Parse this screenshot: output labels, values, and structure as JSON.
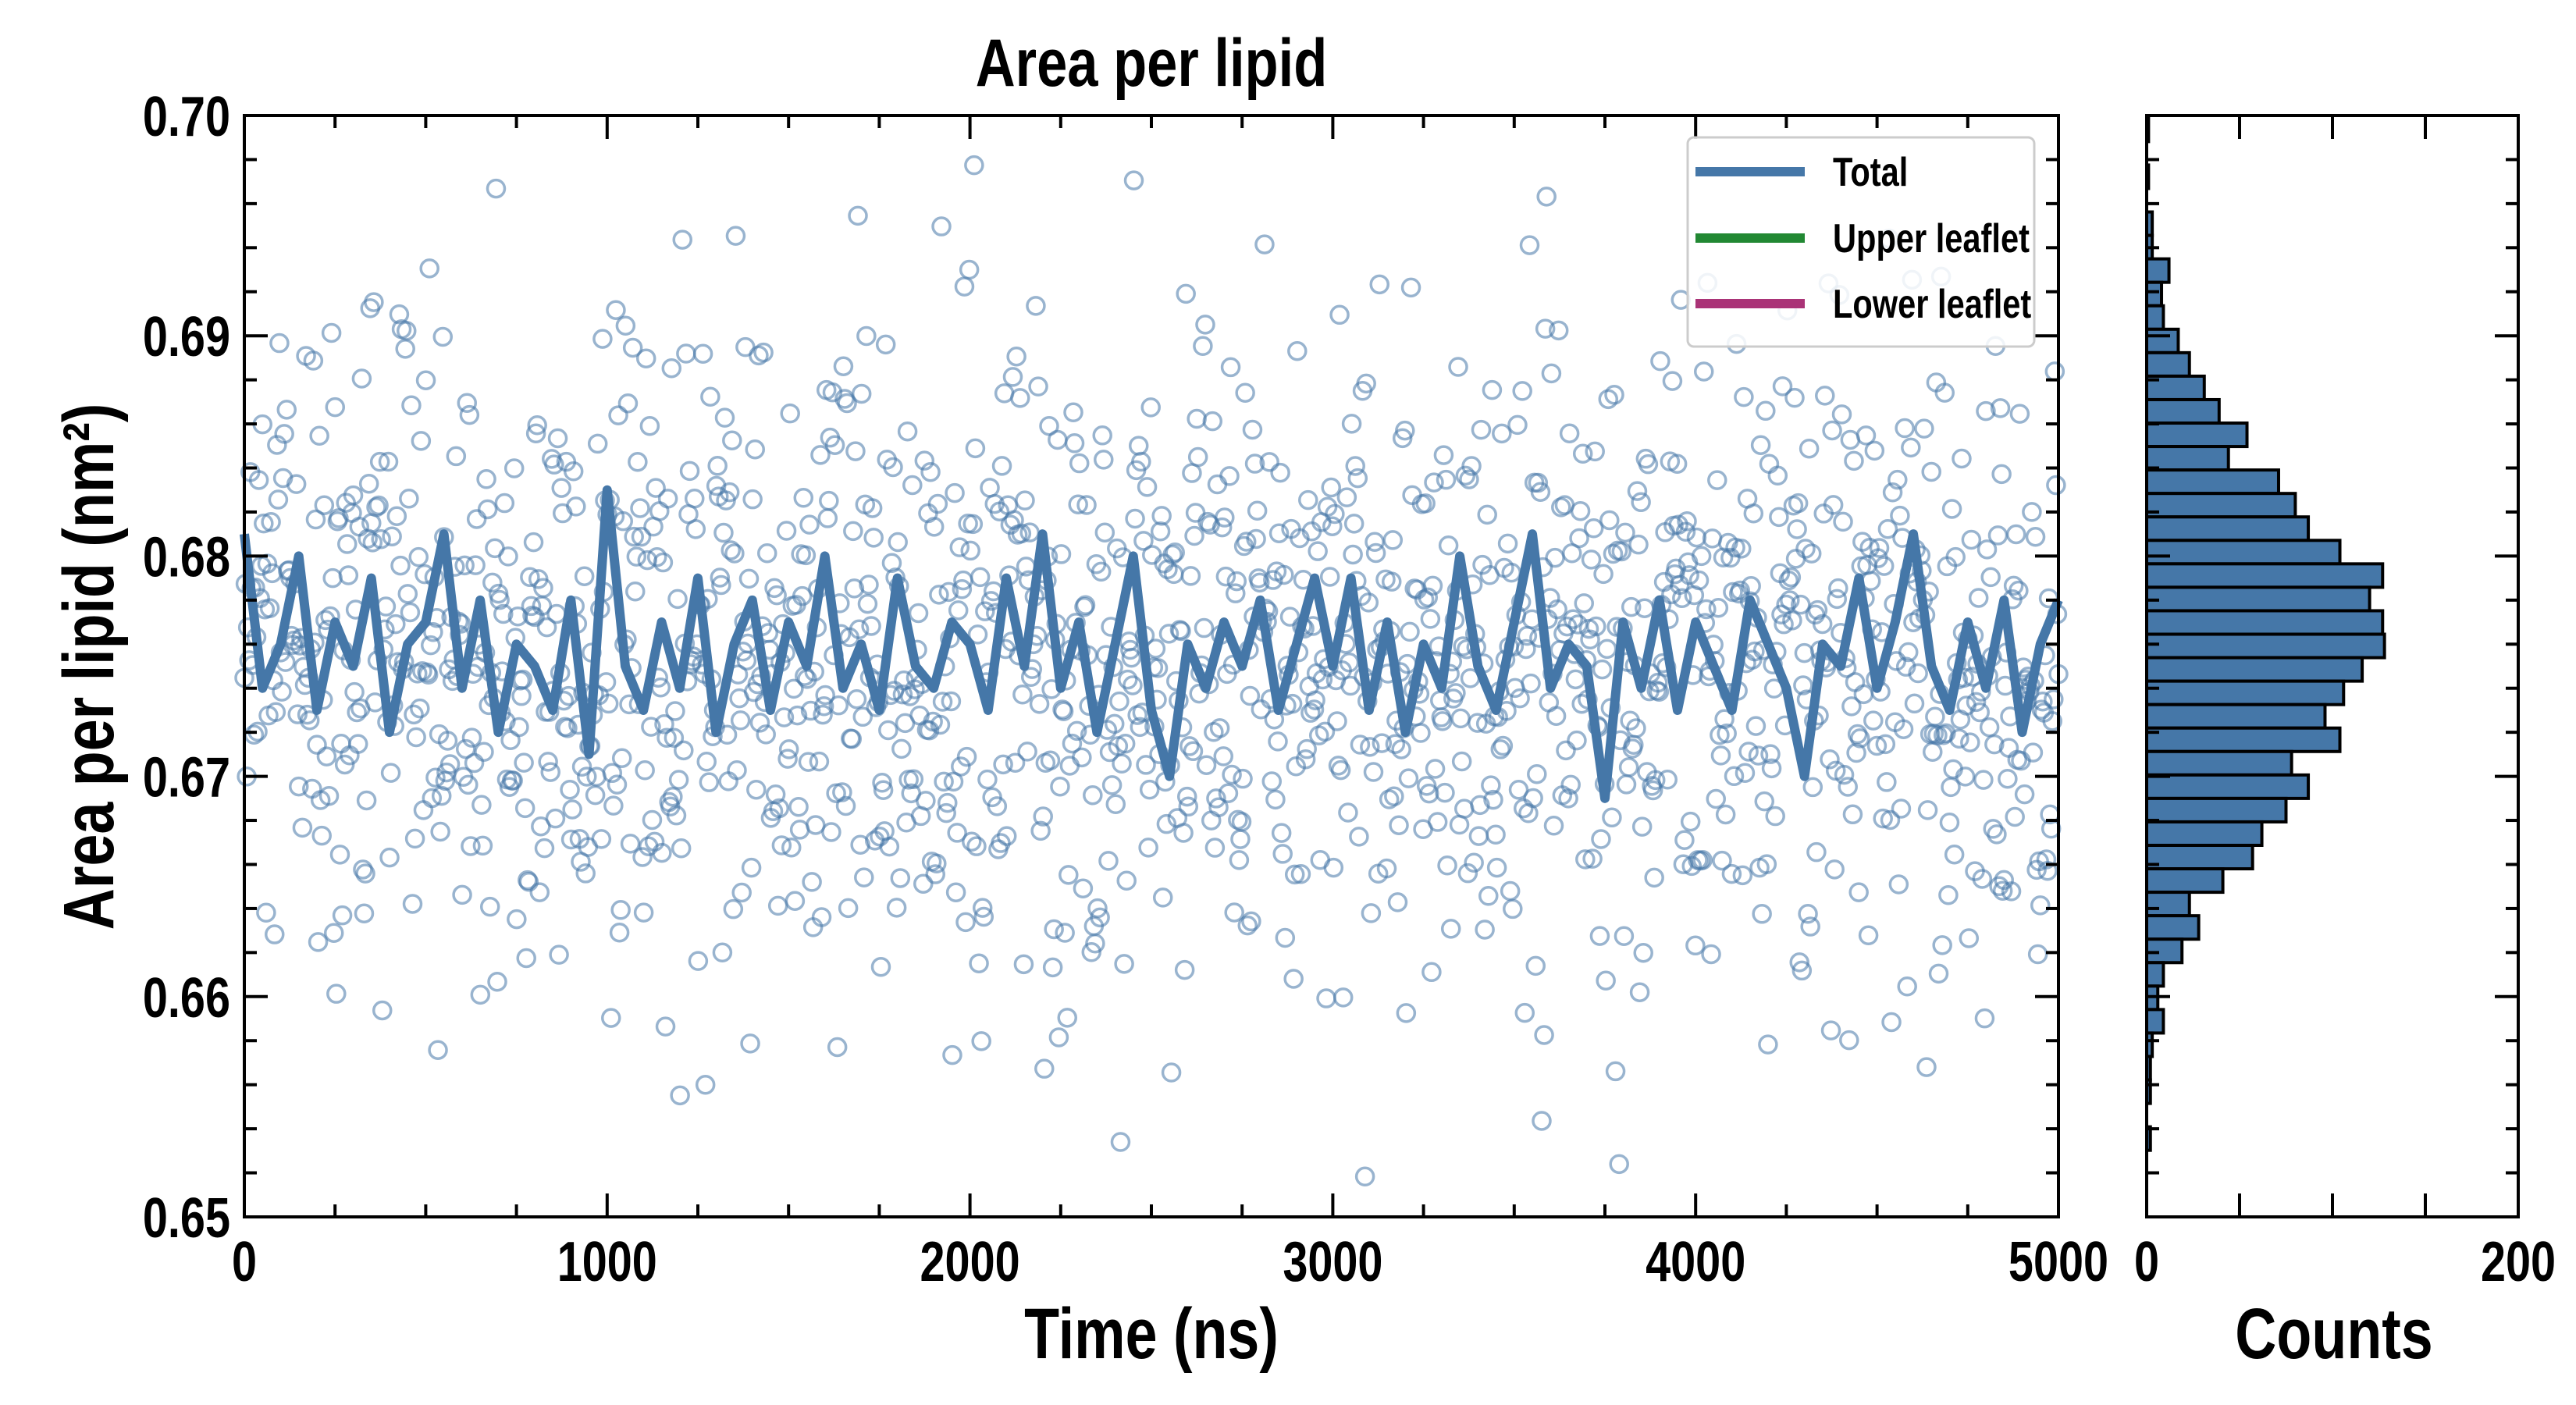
{
  "chart_data": [
    {
      "type": "scatter+line",
      "title": "Area per lipid",
      "xlabel": "Time (ns)",
      "ylabel": "Area per lipid (nm²)",
      "xlim": [
        0,
        5000
      ],
      "ylim": [
        0.65,
        0.7
      ],
      "xticks": [
        "0",
        "1000",
        "2000",
        "3000",
        "4000",
        "5000"
      ],
      "xtick_values": [
        0,
        1000,
        2000,
        3000,
        4000,
        5000
      ],
      "yticks": [
        "0.65",
        "0.66",
        "0.67",
        "0.68",
        "0.69",
        "0.70"
      ],
      "ytick_values": [
        0.65,
        0.66,
        0.67,
        0.68,
        0.69,
        0.7
      ],
      "legend_position": "top-right",
      "legend": [
        {
          "label": "Total",
          "color": "#4577a8"
        },
        {
          "label": "Upper leaflet",
          "color": "#228833"
        },
        {
          "label": "Lower leaflet",
          "color": "#aa3377"
        }
      ],
      "scatter": {
        "name": "Total (raw frames)",
        "color": "#4577a8",
        "n_points": 1500,
        "mean": 0.675,
        "std": 0.0075,
        "x_range": [
          0,
          5000
        ]
      },
      "line": {
        "name": "Total (running average)",
        "color": "#4577a8",
        "x_step": 50,
        "values": [
          0.681,
          0.674,
          0.676,
          0.68,
          0.673,
          0.677,
          0.675,
          0.679,
          0.672,
          0.676,
          0.677,
          0.681,
          0.674,
          0.678,
          0.672,
          0.676,
          0.675,
          0.673,
          0.678,
          0.671,
          0.683,
          0.675,
          0.673,
          0.677,
          0.674,
          0.679,
          0.672,
          0.676,
          0.678,
          0.673,
          0.677,
          0.675,
          0.68,
          0.674,
          0.676,
          0.673,
          0.679,
          0.675,
          0.674,
          0.677,
          0.676,
          0.673,
          0.679,
          0.675,
          0.681,
          0.674,
          0.677,
          0.672,
          0.676,
          0.68,
          0.673,
          0.67,
          0.676,
          0.674,
          0.677,
          0.675,
          0.678,
          0.673,
          0.676,
          0.679,
          0.675,
          0.679,
          0.673,
          0.677,
          0.672,
          0.676,
          0.674,
          0.68,
          0.675,
          0.673,
          0.677,
          0.681,
          0.674,
          0.676,
          0.675,
          0.669,
          0.677,
          0.674,
          0.678,
          0.673,
          0.677,
          0.675,
          0.673,
          0.678,
          0.676,
          0.674,
          0.67,
          0.676,
          0.675,
          0.679,
          0.674,
          0.677,
          0.681,
          0.675,
          0.673,
          0.677,
          0.674,
          0.678,
          0.672,
          0.676,
          0.678
        ]
      }
    },
    {
      "type": "bar",
      "orientation": "horizontal",
      "xlabel": "Counts",
      "xlim": [
        0,
        200
      ],
      "xticks": [
        "0",
        "200"
      ],
      "xtick_values": [
        0,
        200
      ],
      "ylim": [
        0.65,
        0.7
      ],
      "color": "#4577a8",
      "bin_width": 0.001065,
      "first_bin_center": 0.69935,
      "counts_top_to_bottom": [
        1,
        0,
        1,
        0,
        3,
        3,
        12,
        8,
        9,
        17,
        23,
        31,
        39,
        54,
        44,
        71,
        80,
        87,
        104,
        127,
        120,
        127,
        128,
        116,
        106,
        96,
        104,
        78,
        87,
        75,
        62,
        57,
        41,
        23,
        28,
        19,
        9,
        6,
        9,
        3,
        2,
        2,
        0,
        2
      ]
    }
  ]
}
